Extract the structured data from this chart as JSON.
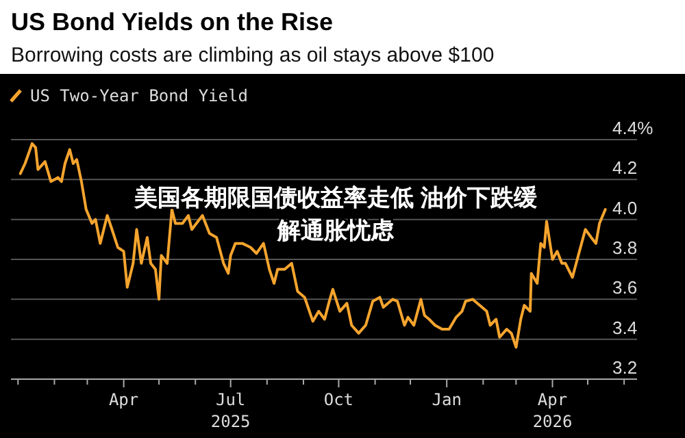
{
  "chart_data": {
    "type": "line",
    "title": "US Bond Yields on the Rise",
    "subtitle": "Borrowing costs are climbing as oil stays above $100",
    "annotations": [
      "美国各期限国债收益率走低 油价下跌缓解通胀忧虑"
    ],
    "legend": "top left",
    "grid": "y",
    "marker": "none",
    "line_style": "solid",
    "xlim": [
      "2024-12-26",
      "2026-06-12"
    ],
    "xticks": [
      {
        "value": "2025-01-01",
        "label": null
      },
      {
        "value": "2025-02-01",
        "label": null
      },
      {
        "value": "2025-03-01",
        "label": null
      },
      {
        "value": "2025-04-01",
        "label": "Apr"
      },
      {
        "value": "2025-05-01",
        "label": null
      },
      {
        "value": "2025-06-01",
        "label": null
      },
      {
        "value": "2025-07-01",
        "label": "Jul\n2025"
      },
      {
        "value": "2025-08-01",
        "label": null
      },
      {
        "value": "2025-09-01",
        "label": null
      },
      {
        "value": "2025-10-01",
        "label": "Oct"
      },
      {
        "value": "2025-11-01",
        "label": null
      },
      {
        "value": "2025-12-01",
        "label": null
      },
      {
        "value": "2026-01-01",
        "label": "Jan"
      },
      {
        "value": "2026-02-01",
        "label": null
      },
      {
        "value": "2026-03-01",
        "label": null
      },
      {
        "value": "2026-04-01",
        "label": "Apr\n2026"
      },
      {
        "value": "2026-05-01",
        "label": null
      },
      {
        "value": "2026-06-01",
        "label": null
      }
    ],
    "ylim": [
      3.2,
      4.4
    ],
    "yticks": [
      3.2,
      3.4,
      3.6,
      3.8,
      {
        "value": 4.0,
        "label": "4.0"
      },
      4.2,
      {
        "value": 4.4,
        "label": "4.4%"
      }
    ],
    "series": [
      {
        "name": "US Two-Year Bond Yield",
        "color": "#f5a42e",
        "x": [
          "2025-01-03",
          "2025-01-07",
          "2025-01-13",
          "2025-01-16",
          "2025-01-18",
          "2025-01-24",
          "2025-01-29",
          "2025-02-04",
          "2025-02-07",
          "2025-02-10",
          "2025-02-14",
          "2025-02-17",
          "2025-02-20",
          "2025-02-24",
          "2025-02-28",
          "2025-03-05",
          "2025-03-08",
          "2025-03-12",
          "2025-03-18",
          "2025-03-22",
          "2025-03-27",
          "2025-04-01",
          "2025-04-04",
          "2025-04-09",
          "2025-04-12",
          "2025-04-16",
          "2025-04-21",
          "2025-04-24",
          "2025-04-28",
          "2025-05-01",
          "2025-05-03",
          "2025-05-08",
          "2025-05-12",
          "2025-05-15",
          "2025-05-21",
          "2025-05-26",
          "2025-05-29",
          "2025-06-07",
          "2025-06-13",
          "2025-06-19",
          "2025-06-25",
          "2025-06-29",
          "2025-07-01",
          "2025-07-05",
          "2025-07-11",
          "2025-07-18",
          "2025-07-23",
          "2025-07-29",
          "2025-08-03",
          "2025-08-07",
          "2025-08-10",
          "2025-08-16",
          "2025-08-22",
          "2025-08-27",
          "2025-09-02",
          "2025-09-09",
          "2025-09-14",
          "2025-09-19",
          "2025-09-23",
          "2025-09-26",
          "2025-10-02",
          "2025-10-08",
          "2025-10-12",
          "2025-10-18",
          "2025-10-24",
          "2025-10-30",
          "2025-11-05",
          "2025-11-08",
          "2025-11-16",
          "2025-11-20",
          "2025-11-26",
          "2025-11-29",
          "2025-12-04",
          "2025-12-10",
          "2025-12-13",
          "2025-12-17",
          "2025-12-22",
          "2025-12-28",
          "2026-01-03",
          "2026-01-09",
          "2026-01-14",
          "2026-01-17",
          "2026-01-23",
          "2026-01-29",
          "2026-02-04",
          "2026-02-07",
          "2026-02-12",
          "2026-02-15",
          "2026-02-21",
          "2026-02-25",
          "2026-03-01",
          "2026-03-05",
          "2026-03-08",
          "2026-03-13",
          "2026-03-14",
          "2026-03-19",
          "2026-03-22",
          "2026-03-25",
          "2026-03-27",
          "2026-04-01",
          "2026-04-05",
          "2026-04-09",
          "2026-04-12",
          "2026-04-18",
          "2026-04-23",
          "2026-04-29",
          "2026-05-04",
          "2026-05-08",
          "2026-05-11",
          "2026-05-16"
        ],
        "values": [
          4.23,
          4.28,
          4.38,
          4.36,
          4.25,
          4.29,
          4.19,
          4.21,
          4.19,
          4.28,
          4.35,
          4.28,
          4.3,
          4.19,
          4.05,
          3.98,
          4.0,
          3.88,
          4.02,
          3.95,
          3.86,
          3.84,
          3.66,
          3.78,
          3.95,
          3.78,
          3.91,
          3.78,
          3.75,
          3.6,
          3.82,
          3.78,
          4.05,
          3.98,
          3.98,
          4.02,
          3.95,
          4.02,
          3.93,
          3.91,
          3.78,
          3.73,
          3.82,
          3.88,
          3.88,
          3.86,
          3.83,
          3.88,
          3.75,
          3.68,
          3.75,
          3.75,
          3.78,
          3.64,
          3.61,
          3.49,
          3.54,
          3.5,
          3.59,
          3.65,
          3.54,
          3.58,
          3.47,
          3.43,
          3.47,
          3.59,
          3.61,
          3.56,
          3.6,
          3.59,
          3.47,
          3.51,
          3.47,
          3.6,
          3.52,
          3.5,
          3.47,
          3.45,
          3.45,
          3.51,
          3.54,
          3.59,
          3.6,
          3.57,
          3.54,
          3.47,
          3.5,
          3.41,
          3.45,
          3.43,
          3.36,
          3.5,
          3.57,
          3.54,
          3.73,
          3.68,
          3.88,
          3.86,
          3.99,
          3.8,
          3.84,
          3.78,
          3.78,
          3.71,
          3.82,
          3.95,
          3.91,
          3.88,
          3.98,
          4.05
        ]
      }
    ]
  }
}
